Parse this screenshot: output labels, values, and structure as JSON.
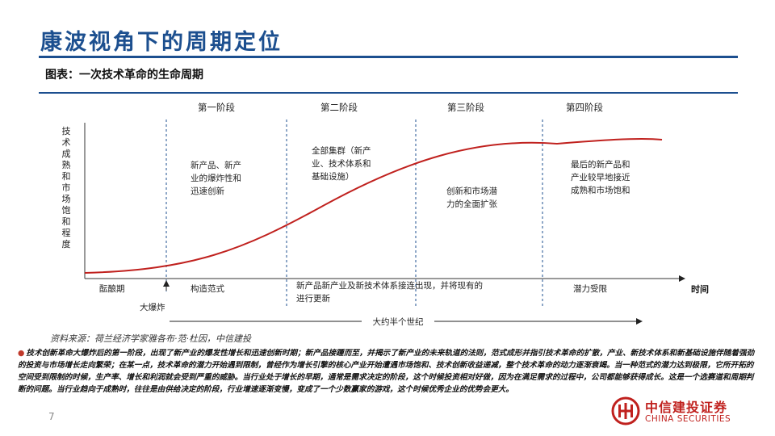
{
  "header": {
    "title": "康波视角下的周期定位",
    "subtitle": "图表：一次技术革命的生命周期"
  },
  "diagram": {
    "y_axis_label": "技术成熟和市场饱和程度",
    "x_axis_label": "时间",
    "stages": [
      {
        "name": "第一阶段",
        "description_lines": [
          "新产品、新产",
          "业的爆炸性和",
          "迅速创新"
        ],
        "bottom_label": "构造范式"
      },
      {
        "name": "第二阶段",
        "description_lines": [
          "全部集群（新产",
          "业、技术体系和",
          "基础设施）"
        ],
        "bottom_label": ""
      },
      {
        "name": "第三阶段",
        "description_lines": [
          "创新和市场潜",
          "力的全面扩张"
        ],
        "bottom_label": ""
      },
      {
        "name": "第四阶段",
        "description_lines": [
          "最后的新产品和",
          "产业较早地接近",
          "成熟和市场饱和"
        ],
        "bottom_label": "潜力受限"
      }
    ],
    "gestation_label": "酝酿期",
    "big_bang_label": "大爆炸",
    "middle_bottom_lines": [
      "新产品新产业及新技术体系接连出现，并将现有的",
      "进行更新"
    ],
    "span_label": "大约半个世纪"
  },
  "footer": {
    "source": "资料来源：荷兰经济学家雅各布·范·杜因，中信建投",
    "note_bullet": "●",
    "note": "技术创新革命大爆炸后的第一阶段，出现了新产业的爆发性增长和迅速创新时期；新产品接踵而至，并揭示了新产业的未来轨道的法则，范式成形并指引技术革命的扩散，产业、新技术体系和新基础设施伴随着强劲的投资与市场增长走向繁荣；在某一点，技术革命的潜力开始遇到限制，曾经作为增长引擎的核心产业开始遭遇市场饱和、技术创新收益递减，整个技术革命的动力逐渐衰竭。当一种范式的潜力达到极限，它所开拓的空间受到限制的时候，生产率、增长和利润就会受到严重的威胁。当行业处于增长的早期，通常是需求决定的阶段，这个时候投资相对好做，因为在满足需求的过程中，公司都能够获得成长。这是一个选赛道和周期判断的问题。当行业趋向于成熟时，往往是由供给决定的阶段，行业增速逐渐变慢，变成了一个少数赢家的游戏，这个时候优秀企业的优势会更大。",
    "page_number": "7"
  },
  "brand": {
    "name_cn": "中信建投证券",
    "name_en": "CHINA SECURITIES",
    "color": "#c0211e"
  },
  "colors": {
    "title": "#1c4f8f",
    "curve": "#c0211e"
  }
}
